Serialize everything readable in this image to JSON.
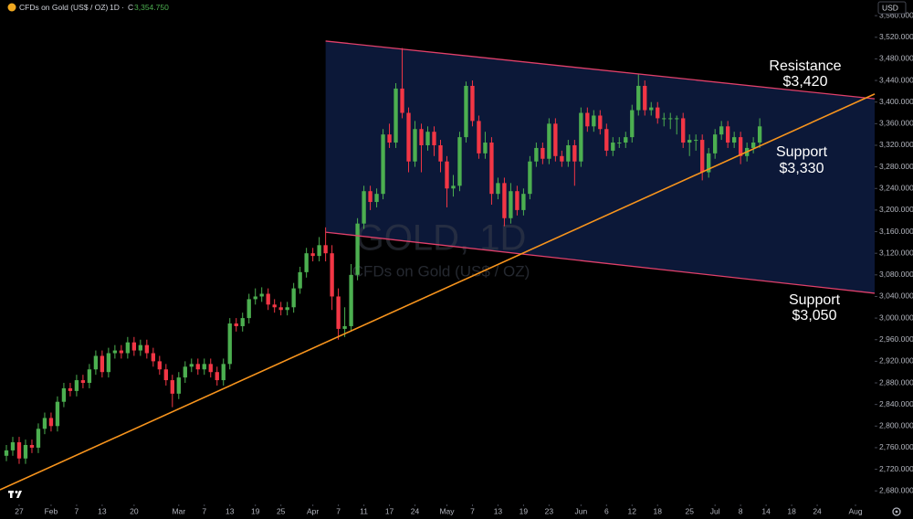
{
  "chart_data": {
    "type": "candlestick",
    "header": {
      "symbol": "CFDs on Gold (US$ / OZ)",
      "separator": "·",
      "interval": "1D",
      "close_label": "C",
      "close_value": "3,354.750"
    },
    "currency": "USD",
    "watermark": {
      "title": "GOLD, 1D",
      "subtitle": "CFDs on Gold (US$ / OZ)"
    },
    "up_color": "#4caf50",
    "down_color": "#f23645",
    "grid": false,
    "xlim": [
      -1,
      136
    ],
    "ylim": [
      2655,
      3589
    ],
    "open": [
      2745,
      2755,
      2770,
      2740,
      2765,
      2760,
      2795,
      2815,
      2800,
      2845,
      2870,
      2865,
      2885,
      2880,
      2905,
      2930,
      2900,
      2935,
      2940,
      2935,
      2955,
      2940,
      2950,
      2935,
      2920,
      2905,
      2885,
      2860,
      2890,
      2910,
      2915,
      2905,
      2915,
      2900,
      2885,
      2915,
      2990,
      2985,
      3000,
      3035,
      3040,
      3045,
      3025,
      3020,
      3015,
      3020,
      3055,
      3085,
      3120,
      3115,
      3135,
      3120,
      3040,
      2980,
      2985,
      3080,
      3175,
      3235,
      3215,
      3230,
      3340,
      3325,
      3425,
      3380,
      3290,
      3350,
      3320,
      3345,
      3320,
      3290,
      3240,
      3245,
      3335,
      3430,
      3365,
      3305,
      3325,
      3230,
      3250,
      3185,
      3235,
      3200,
      3230,
      3290,
      3315,
      3295,
      3360,
      3300,
      3290,
      3320,
      3290,
      3380,
      3355,
      3375,
      3350,
      3310,
      3325,
      3325,
      3335,
      3385,
      3430,
      3385,
      3390,
      3370,
      3370,
      3370,
      3370,
      3325,
      3330,
      3330,
      3270,
      3305,
      3340,
      3355,
      3325,
      3335,
      3300,
      3315,
      3325
    ],
    "high": [
      2765,
      2780,
      2780,
      2775,
      2775,
      2805,
      2825,
      2825,
      2855,
      2880,
      2880,
      2895,
      2895,
      2915,
      2940,
      2940,
      2945,
      2950,
      2950,
      2965,
      2965,
      2960,
      2960,
      2945,
      2930,
      2915,
      2895,
      2900,
      2920,
      2925,
      2925,
      2925,
      2925,
      2910,
      2925,
      3000,
      3000,
      3010,
      3045,
      3055,
      3057,
      3055,
      3035,
      3030,
      3030,
      3065,
      3095,
      3130,
      3130,
      3150,
      3168,
      3135,
      3055,
      3020,
      3100,
      3185,
      3245,
      3245,
      3240,
      3350,
      3360,
      3435,
      3500,
      3390,
      3365,
      3360,
      3355,
      3355,
      3330,
      3300,
      3265,
      3345,
      3438,
      3440,
      3375,
      3345,
      3335,
      3260,
      3260,
      3250,
      3245,
      3240,
      3300,
      3325,
      3325,
      3370,
      3370,
      3310,
      3330,
      3330,
      3390,
      3390,
      3385,
      3385,
      3360,
      3335,
      3335,
      3345,
      3395,
      3452,
      3440,
      3400,
      3400,
      3380,
      3380,
      3375,
      3380,
      3340,
      3340,
      3340,
      3315,
      3350,
      3365,
      3365,
      3345,
      3345,
      3325,
      3335,
      3370
    ],
    "low": [
      2735,
      2745,
      2730,
      2730,
      2750,
      2750,
      2785,
      2790,
      2790,
      2835,
      2855,
      2855,
      2870,
      2870,
      2895,
      2890,
      2890,
      2925,
      2925,
      2925,
      2930,
      2930,
      2925,
      2910,
      2895,
      2875,
      2835,
      2850,
      2880,
      2900,
      2895,
      2895,
      2890,
      2875,
      2875,
      2905,
      2975,
      2975,
      2990,
      3025,
      3030,
      3015,
      3010,
      3005,
      3005,
      3010,
      3045,
      3075,
      3105,
      3105,
      3105,
      3015,
      2960,
      2965,
      2975,
      3070,
      3165,
      3200,
      3205,
      3220,
      3315,
      3315,
      3370,
      3270,
      3280,
      3270,
      3310,
      3300,
      3270,
      3205,
      3225,
      3235,
      3325,
      3355,
      3295,
      3295,
      3210,
      3220,
      3170,
      3175,
      3190,
      3190,
      3220,
      3280,
      3285,
      3285,
      3290,
      3280,
      3280,
      3245,
      3280,
      3345,
      3345,
      3340,
      3300,
      3300,
      3315,
      3315,
      3325,
      3375,
      3375,
      3375,
      3360,
      3355,
      3350,
      3340,
      3315,
      3300,
      3310,
      3255,
      3260,
      3295,
      3330,
      3315,
      3315,
      3285,
      3290,
      3305,
      3315
    ],
    "close": [
      2755,
      2770,
      2740,
      2765,
      2760,
      2795,
      2815,
      2800,
      2845,
      2870,
      2865,
      2885,
      2880,
      2905,
      2930,
      2900,
      2935,
      2940,
      2935,
      2955,
      2940,
      2950,
      2935,
      2920,
      2905,
      2885,
      2860,
      2890,
      2910,
      2915,
      2905,
      2915,
      2900,
      2885,
      2915,
      2990,
      2985,
      3000,
      3035,
      3040,
      3045,
      3025,
      3020,
      3015,
      3020,
      3055,
      3085,
      3120,
      3115,
      3135,
      3120,
      3040,
      2980,
      2985,
      3080,
      3175,
      3235,
      3215,
      3230,
      3340,
      3325,
      3425,
      3380,
      3290,
      3350,
      3320,
      3345,
      3320,
      3290,
      3240,
      3245,
      3335,
      3430,
      3365,
      3305,
      3325,
      3230,
      3250,
      3185,
      3235,
      3200,
      3230,
      3290,
      3315,
      3295,
      3360,
      3300,
      3290,
      3320,
      3290,
      3380,
      3355,
      3375,
      3350,
      3310,
      3325,
      3325,
      3335,
      3385,
      3430,
      3385,
      3390,
      3370,
      3370,
      3370,
      3370,
      3325,
      3330,
      3330,
      3270,
      3305,
      3340,
      3355,
      3325,
      3335,
      3300,
      3315,
      3325,
      3355
    ],
    "yticks": [
      {
        "value": 2680,
        "label": "2,680.000"
      },
      {
        "value": 2720,
        "label": "2,720.000"
      },
      {
        "value": 2760,
        "label": "2,760.000"
      },
      {
        "value": 2800,
        "label": "2,800.000"
      },
      {
        "value": 2840,
        "label": "2,840.000"
      },
      {
        "value": 2880,
        "label": "2,880.000"
      },
      {
        "value": 2920,
        "label": "2,920.000"
      },
      {
        "value": 2960,
        "label": "2,960.000"
      },
      {
        "value": 3000,
        "label": "3,000.000"
      },
      {
        "value": 3040,
        "label": "3,040.000"
      },
      {
        "value": 3080,
        "label": "3,080.000"
      },
      {
        "value": 3120,
        "label": "3,120.000"
      },
      {
        "value": 3160,
        "label": "3,160.000"
      },
      {
        "value": 3200,
        "label": "3,200.000"
      },
      {
        "value": 3240,
        "label": "3,240.000"
      },
      {
        "value": 3280,
        "label": "3,280.000"
      },
      {
        "value": 3320,
        "label": "3,320.000"
      },
      {
        "value": 3360,
        "label": "3,360.000"
      },
      {
        "value": 3400,
        "label": "3,400.000"
      },
      {
        "value": 3440,
        "label": "3,440.000"
      },
      {
        "value": 3480,
        "label": "3,480.000"
      },
      {
        "value": 3520,
        "label": "3,520.000"
      },
      {
        "value": 3560,
        "label": "3,560.000"
      }
    ],
    "xticks": [
      {
        "value": 2,
        "label": "27"
      },
      {
        "value": 7,
        "label": "Feb"
      },
      {
        "value": 11,
        "label": "7"
      },
      {
        "value": 15,
        "label": "13"
      },
      {
        "value": 20,
        "label": "20"
      },
      {
        "value": 27,
        "label": "Mar"
      },
      {
        "value": 31,
        "label": "7"
      },
      {
        "value": 35,
        "label": "13"
      },
      {
        "value": 39,
        "label": "19"
      },
      {
        "value": 43,
        "label": "25"
      },
      {
        "value": 48,
        "label": "Apr"
      },
      {
        "value": 52,
        "label": "7"
      },
      {
        "value": 56,
        "label": "11"
      },
      {
        "value": 60,
        "label": "17"
      },
      {
        "value": 64,
        "label": "24"
      },
      {
        "value": 69,
        "label": "May"
      },
      {
        "value": 73,
        "label": "7"
      },
      {
        "value": 77,
        "label": "13"
      },
      {
        "value": 81,
        "label": "19"
      },
      {
        "value": 85,
        "label": "23"
      },
      {
        "value": 90,
        "label": "Jun"
      },
      {
        "value": 94,
        "label": "6"
      },
      {
        "value": 98,
        "label": "12"
      },
      {
        "value": 102,
        "label": "18"
      },
      {
        "value": 107,
        "label": "25"
      },
      {
        "value": 111,
        "label": "Jul"
      },
      {
        "value": 115,
        "label": "8"
      },
      {
        "value": 119,
        "label": "14"
      },
      {
        "value": 123,
        "label": "18"
      },
      {
        "value": 127,
        "label": "24"
      },
      {
        "value": 133,
        "label": "Aug"
      }
    ],
    "channel": {
      "line_color": "#e0406a",
      "fill": "#0c1838",
      "upper": {
        "x": [
          50,
          136
        ],
        "y": [
          3513,
          3406
        ]
      },
      "lower": {
        "x": [
          50,
          136
        ],
        "y": [
          3159,
          3046
        ]
      }
    },
    "trendline": {
      "color": "#f7941d",
      "x": [
        -1,
        136
      ],
      "y": [
        2682,
        3415
      ]
    },
    "annotations": [
      {
        "lines": [
          "Resistance",
          "$3,420"
        ]
      },
      {
        "lines": [
          "Support",
          "$3,330"
        ]
      },
      {
        "lines": [
          "Support",
          "$3,050"
        ]
      }
    ]
  }
}
